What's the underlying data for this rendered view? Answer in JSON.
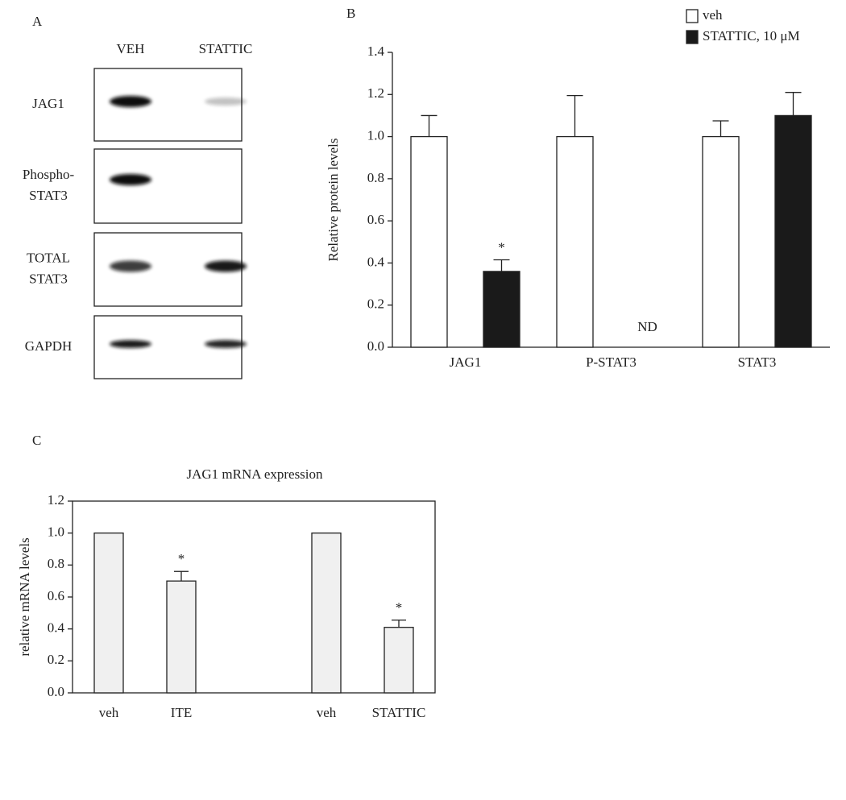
{
  "blot": {
    "panel_label": "A",
    "lanes": [
      "VEH",
      "STATTIC"
    ],
    "rows": [
      [
        "JAG1"
      ],
      [
        "Phospho-",
        "STAT3"
      ],
      [
        "TOTAL",
        "STAT3"
      ],
      [
        "GAPDH"
      ]
    ]
  },
  "chart_data": [
    {
      "type": "bar",
      "panel_label": "B",
      "y_label": "Relative protein levels",
      "categories": [
        "JAG1",
        "P-STAT3",
        "STAT3"
      ],
      "series": [
        {
          "name": "veh",
          "color": "#ffffff",
          "values": [
            1.0,
            1.0,
            1.0
          ],
          "errors": [
            0.1,
            0.195,
            0.075
          ]
        },
        {
          "name": "STATTIC, 10 μM",
          "color": "#1a1a1a",
          "values": [
            0.36,
            null,
            1.1
          ],
          "errors": [
            0.055,
            null,
            0.11
          ]
        }
      ],
      "annotations": [
        "*",
        "ND"
      ],
      "ylim": [
        0,
        1.4
      ],
      "yticks": [
        {
          "value": 0,
          "label": "0.0"
        },
        {
          "value": 0.2,
          "label": "0.2"
        },
        {
          "value": 0.4,
          "label": "0.4"
        },
        {
          "value": 0.6,
          "label": "0.6"
        },
        {
          "value": 0.8,
          "label": "0.8"
        },
        {
          "value": 1,
          "label": "1.0"
        },
        {
          "value": 1.2,
          "label": "1.2"
        },
        {
          "value": 1.4,
          "label": "1.4"
        }
      ],
      "legend": "upper-right",
      "box": false
    },
    {
      "type": "bar",
      "panel_label": "C",
      "title": "JAG1 mRNA expression",
      "y_label": "relative mRNA levels",
      "categories": [
        "veh",
        "ITE",
        null,
        "veh",
        "STATTIC"
      ],
      "values": [
        1.0,
        0.7,
        null,
        1.0,
        0.41
      ],
      "errors": [
        null,
        0.06,
        null,
        null,
        0.045
      ],
      "color": "#f0f0f0",
      "annotations": [
        "*",
        "*"
      ],
      "ylim": [
        0,
        1.2
      ],
      "yticks": [
        {
          "value": 0,
          "label": "0.0"
        },
        {
          "value": 0.2,
          "label": "0.2"
        },
        {
          "value": 0.4,
          "label": "0.4"
        },
        {
          "value": 0.6,
          "label": "0.6"
        },
        {
          "value": 0.8,
          "label": "0.8"
        },
        {
          "value": 1,
          "label": "1.0"
        },
        {
          "value": 1.2,
          "label": "1.2"
        }
      ],
      "box": true
    }
  ]
}
